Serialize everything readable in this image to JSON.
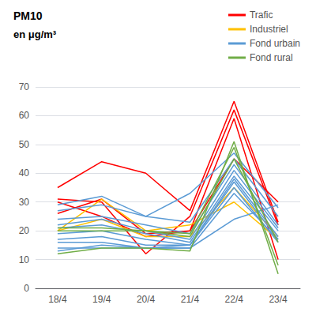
{
  "chart_data": {
    "type": "line",
    "title": "PM10",
    "subtitle": "en μg/m³",
    "categories": [
      "18/4",
      "19/4",
      "20/4",
      "21/4",
      "22/4",
      "23/4"
    ],
    "ylim": [
      0,
      70
    ],
    "yticks": [
      0,
      10,
      20,
      30,
      40,
      50,
      60,
      70
    ],
    "grid": true,
    "legend": "top",
    "series": [
      {
        "name": "Trafic",
        "color": "#FF0000",
        "values": [
          35,
          44,
          40,
          27,
          65,
          23
        ]
      },
      {
        "name": "Trafic",
        "color": "#FF0000",
        "values": [
          31,
          30,
          12,
          25,
          62,
          22
        ]
      },
      {
        "name": "Trafic",
        "color": "#FF0000",
        "values": [
          26,
          31,
          19,
          20,
          59,
          10
        ]
      },
      {
        "name": "Trafic",
        "color": "#FF0000",
        "values": [
          30,
          25,
          18,
          20,
          45,
          30
        ]
      },
      {
        "name": "Industriel",
        "color": "#FFC000",
        "values": [
          20,
          24,
          18,
          18,
          35,
          18
        ]
      },
      {
        "name": "Industriel",
        "color": "#FFC000",
        "values": [
          20,
          31,
          20,
          22,
          30,
          17
        ]
      },
      {
        "name": "Fond urbain",
        "color": "#5B9BD5",
        "values": [
          29,
          32,
          25,
          33,
          47,
          28
        ]
      },
      {
        "name": "Fond urbain",
        "color": "#5B9BD5",
        "values": [
          27,
          29,
          25,
          23,
          45,
          25
        ]
      },
      {
        "name": "Fond urbain",
        "color": "#5B9BD5",
        "values": [
          24,
          25,
          22,
          19,
          43,
          22
        ]
      },
      {
        "name": "Fond urbain",
        "color": "#5B9BD5",
        "values": [
          22,
          24,
          20,
          17,
          41,
          21
        ]
      },
      {
        "name": "Fond urbain",
        "color": "#5B9BD5",
        "values": [
          21,
          22,
          19,
          16,
          39,
          20
        ]
      },
      {
        "name": "Fond urbain",
        "color": "#5B9BD5",
        "values": [
          19,
          20,
          17,
          15,
          38,
          18
        ]
      },
      {
        "name": "Fond urbain",
        "color": "#5B9BD5",
        "values": [
          17,
          18,
          15,
          15,
          37,
          17
        ]
      },
      {
        "name": "Fond urbain",
        "color": "#5B9BD5",
        "values": [
          16,
          16,
          14,
          15,
          35,
          16
        ]
      },
      {
        "name": "Fond urbain",
        "color": "#5B9BD5",
        "values": [
          14,
          14,
          14,
          14,
          33,
          17
        ]
      },
      {
        "name": "Fond urbain",
        "color": "#5B9BD5",
        "values": [
          13,
          15,
          14,
          14,
          24,
          29
        ]
      },
      {
        "name": "Fond rural",
        "color": "#70AD47",
        "values": [
          12,
          14,
          14,
          13,
          51,
          5
        ]
      },
      {
        "name": "Fond rural",
        "color": "#70AD47",
        "values": [
          21,
          21,
          20,
          19,
          49,
          8
        ]
      },
      {
        "name": "Fond rural",
        "color": "#70AD47",
        "values": [
          20,
          20,
          20,
          18,
          45,
          16
        ]
      }
    ]
  }
}
